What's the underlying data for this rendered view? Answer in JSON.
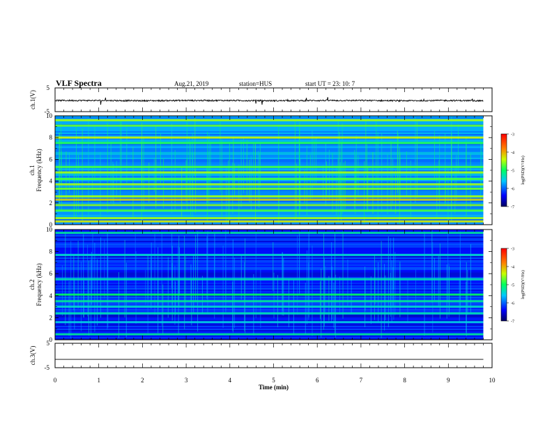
{
  "header": {
    "title": "VLF Spectra",
    "date": "Aug.21, 2019",
    "station": "station=HUS",
    "start": "start  UT  =   23: 10: 7"
  },
  "chart_data": [
    {
      "type": "line",
      "panel": "ch1-waveform",
      "ylabel": "ch.1(V)",
      "ylim": [
        -5,
        5
      ],
      "ytick_labels": [
        "5",
        "-5"
      ],
      "x": [
        0,
        1,
        2,
        3,
        4,
        5,
        6,
        7,
        8,
        9,
        9.8
      ],
      "series": [
        {
          "values": [
            -0.3,
            -0.3,
            -0.4,
            -0.3,
            -0.3,
            -0.4,
            -0.3,
            -0.3,
            -0.4,
            -0.3,
            -0.4
          ]
        }
      ]
    },
    {
      "type": "heatmap",
      "panel": "ch1-spectrogram",
      "ylabel": "ch.1\nFrequency (kHz)",
      "ylim": [
        0,
        10
      ],
      "ytick_labels": [
        "0",
        "2",
        "4",
        "6",
        "8",
        "10"
      ],
      "xlim": [
        0,
        10
      ],
      "data_extent_min": 9.8,
      "colorbar": {
        "label": "log(PSD)(V²/Hz)",
        "range": [
          -7,
          -3
        ],
        "tick_labels": [
          "-3",
          "-4",
          "-5",
          "-6",
          "-7"
        ]
      },
      "bands_khz": [
        {
          "f": 0.3,
          "level": -4.3
        },
        {
          "f": 0.6,
          "level": -4.5
        },
        {
          "f": 1.3,
          "level": -4.8
        },
        {
          "f": 1.8,
          "level": -4.6
        },
        {
          "f": 2.3,
          "level": -4.2
        },
        {
          "f": 2.6,
          "level": -4.5
        },
        {
          "f": 3.3,
          "level": -4.7
        },
        {
          "f": 3.7,
          "level": -4.5
        },
        {
          "f": 4.2,
          "level": -4.8
        },
        {
          "f": 4.8,
          "level": -4.5
        },
        {
          "f": 5.3,
          "level": -4.8
        },
        {
          "f": 7.5,
          "level": -4.9
        },
        {
          "f": 8.0,
          "level": -4.4
        },
        {
          "f": 9.1,
          "level": -4.7
        },
        {
          "f": 9.6,
          "level": -4.5
        }
      ],
      "background_level": -5.8
    },
    {
      "type": "heatmap",
      "panel": "ch2-spectrogram",
      "ylabel": "ch.2\nFrequency (kHz)",
      "ylim": [
        0,
        10
      ],
      "ytick_labels": [
        "0",
        "2",
        "4",
        "6",
        "8",
        "10"
      ],
      "xlim": [
        0,
        10
      ],
      "data_extent_min": 9.8,
      "colorbar": {
        "label": "log(PSD)(V²/Hz)",
        "range": [
          -7,
          -3
        ],
        "tick_labels": [
          "-3",
          "-4",
          "-5",
          "-6",
          "-7"
        ]
      },
      "bands_khz": [
        {
          "f": 0.5,
          "level": -5.2
        },
        {
          "f": 1.6,
          "level": -5.5
        },
        {
          "f": 2.4,
          "level": -5.3
        },
        {
          "f": 3.0,
          "level": -5.4
        },
        {
          "f": 3.5,
          "level": -5.2
        },
        {
          "f": 4.1,
          "level": -5.0
        },
        {
          "f": 5.5,
          "level": -5.3
        },
        {
          "f": 7.7,
          "level": -5.4
        },
        {
          "f": 9.7,
          "level": -5.2
        }
      ],
      "background_level": -6.3
    },
    {
      "type": "line",
      "panel": "ch3-waveform",
      "ylabel": "ch.3(V)",
      "ylim": [
        -5,
        5
      ],
      "ytick_labels": [
        "5",
        "-5"
      ],
      "xlabel": "Time (min)",
      "xlim": [
        0,
        10
      ],
      "xtick_labels": [
        "0",
        "1",
        "2",
        "3",
        "4",
        "5",
        "6",
        "7",
        "8",
        "9",
        "10"
      ],
      "x": [
        0,
        9.8
      ],
      "series": [
        {
          "values": [
            -1.6,
            -1.6
          ]
        }
      ]
    }
  ]
}
